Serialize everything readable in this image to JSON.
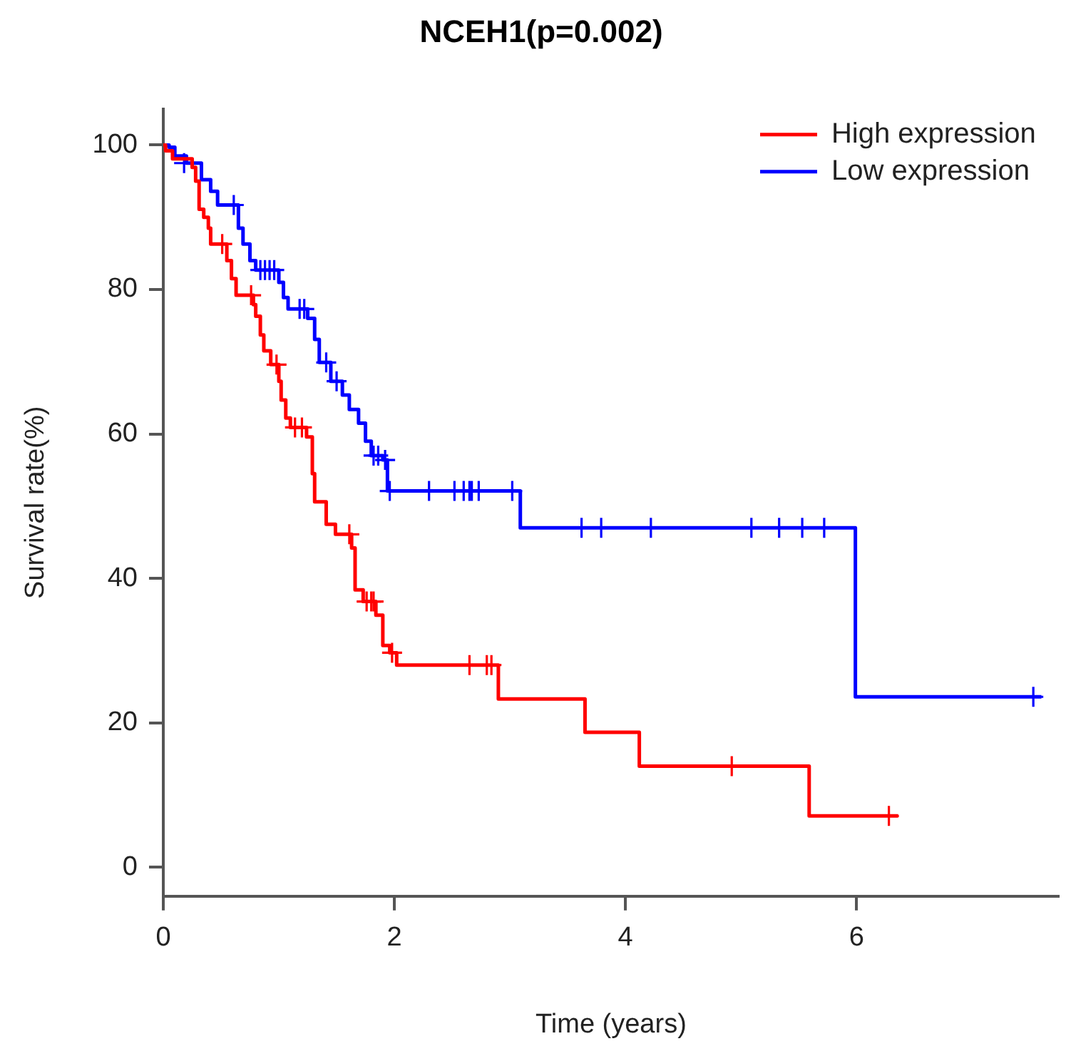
{
  "chart_data": {
    "type": "step",
    "title": "NCEH1(p=0.002)",
    "xlabel": "Time (years)",
    "ylabel": "Survival rate(%)",
    "xlim": [
      0,
      7.75
    ],
    "ylim": [
      -4,
      105
    ],
    "xticks": [
      0,
      2,
      4,
      6
    ],
    "yticks": [
      0,
      20,
      40,
      60,
      80,
      100
    ],
    "legend": "top right",
    "series": [
      {
        "name": "High expression",
        "color": "#ff0000",
        "marker": "none",
        "x": [
          0,
          0.02,
          0.08,
          0.25,
          0.28,
          0.31,
          0.35,
          0.39,
          0.41,
          0.55,
          0.59,
          0.63,
          0.78,
          0.8,
          0.84,
          0.87,
          0.93,
          1.0,
          1.02,
          1.06,
          1.1,
          1.24,
          1.29,
          1.31,
          1.41,
          1.49,
          1.63,
          1.66,
          1.73,
          1.84,
          1.9,
          1.96,
          2.02,
          2.9,
          3.65,
          4.12,
          5.59,
          6.36
        ],
        "values": [
          100,
          99.2,
          98.1,
          96.9,
          95,
          91.1,
          90,
          88.5,
          86.3,
          84,
          81.5,
          79.2,
          77.9,
          76.3,
          73.7,
          71.5,
          69.6,
          67.3,
          64.7,
          62.2,
          60.9,
          59.6,
          54.5,
          50.6,
          47.5,
          46.1,
          44.2,
          38.4,
          36.8,
          34.9,
          30.7,
          29.7,
          28,
          23.3,
          18.7,
          14,
          7.1,
          7.1
        ]
      },
      {
        "name": "Low expression",
        "color": "#0000ff",
        "marker": "none",
        "x": [
          0,
          0.05,
          0.1,
          0.2,
          0.33,
          0.41,
          0.47,
          0.65,
          0.69,
          0.75,
          0.8,
          1.0,
          1.04,
          1.08,
          1.25,
          1.31,
          1.35,
          1.45,
          1.55,
          1.61,
          1.69,
          1.75,
          1.8,
          1.9,
          1.94,
          3.09,
          5.99,
          7.6
        ],
        "values": [
          100,
          99.7,
          98.5,
          97.5,
          95.2,
          93.6,
          91.7,
          88.5,
          86.3,
          84,
          82.7,
          81,
          78.9,
          77.3,
          76,
          73.1,
          69.9,
          67.3,
          65.4,
          63.4,
          61.5,
          59,
          57,
          56.4,
          52.1,
          47,
          23.6,
          23.6
        ]
      },
      {
        "color": "#ff0000",
        "type": "scatter",
        "marker": "cross",
        "x": [
          0.51,
          0.76,
          0.98,
          1.14,
          1.2,
          1.61,
          1.76,
          1.8,
          1.82,
          1.98,
          2.65,
          2.8,
          2.84,
          4.92,
          6.28
        ],
        "values": [
          86.3,
          79.2,
          69.6,
          60.9,
          60.9,
          46.1,
          36.8,
          36.8,
          36.8,
          29.7,
          28,
          28,
          28,
          14,
          7.1
        ]
      },
      {
        "color": "#0000ff",
        "type": "scatter",
        "marker": "cross",
        "x": [
          0.18,
          0.61,
          0.84,
          0.88,
          0.92,
          0.96,
          1.18,
          1.22,
          1.41,
          1.5,
          1.82,
          1.86,
          1.92,
          1.96,
          2.3,
          2.52,
          2.6,
          2.65,
          2.67,
          2.73,
          3.02,
          3.62,
          3.79,
          4.22,
          5.09,
          5.33,
          5.53,
          5.72,
          7.53
        ],
        "values": [
          97.5,
          91.7,
          82.7,
          82.7,
          82.7,
          82.7,
          77.3,
          77.3,
          69.9,
          67.3,
          57,
          57,
          56.4,
          52.1,
          52.1,
          52.1,
          52.1,
          52.1,
          52.1,
          52.1,
          52.1,
          47,
          47,
          47,
          47,
          47,
          47,
          47,
          23.6
        ]
      }
    ]
  }
}
